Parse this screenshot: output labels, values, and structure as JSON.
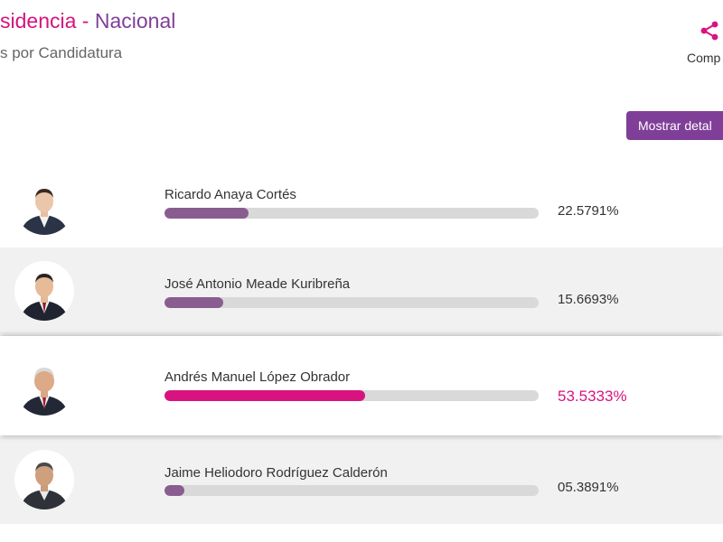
{
  "header": {
    "title_part1": "sidencia",
    "title_sep": "-",
    "title_part2": "Nacional",
    "subtitle": "s por Candidatura"
  },
  "share": {
    "label": "Comp",
    "icon": "share-icon"
  },
  "details_button": {
    "label": "Mostrar detal"
  },
  "colors": {
    "accent_pink": "#d8137f",
    "accent_purple": "#7f3f98",
    "bar_fill": "#8a5d91",
    "bar_track": "#d9d9d9"
  },
  "candidates": [
    {
      "name": "Ricardo Anaya Cortés",
      "percent": "22.5791%",
      "value": 22.5791
    },
    {
      "name": "José Antonio Meade Kuribreña",
      "percent": "15.6693%",
      "value": 15.6693
    },
    {
      "name": "Andrés Manuel López Obrador",
      "percent": "53.5333%",
      "value": 53.5333,
      "winner": true
    },
    {
      "name": "Jaime Heliodoro Rodríguez Calderón",
      "percent": "05.3891%",
      "value": 5.3891
    }
  ]
}
